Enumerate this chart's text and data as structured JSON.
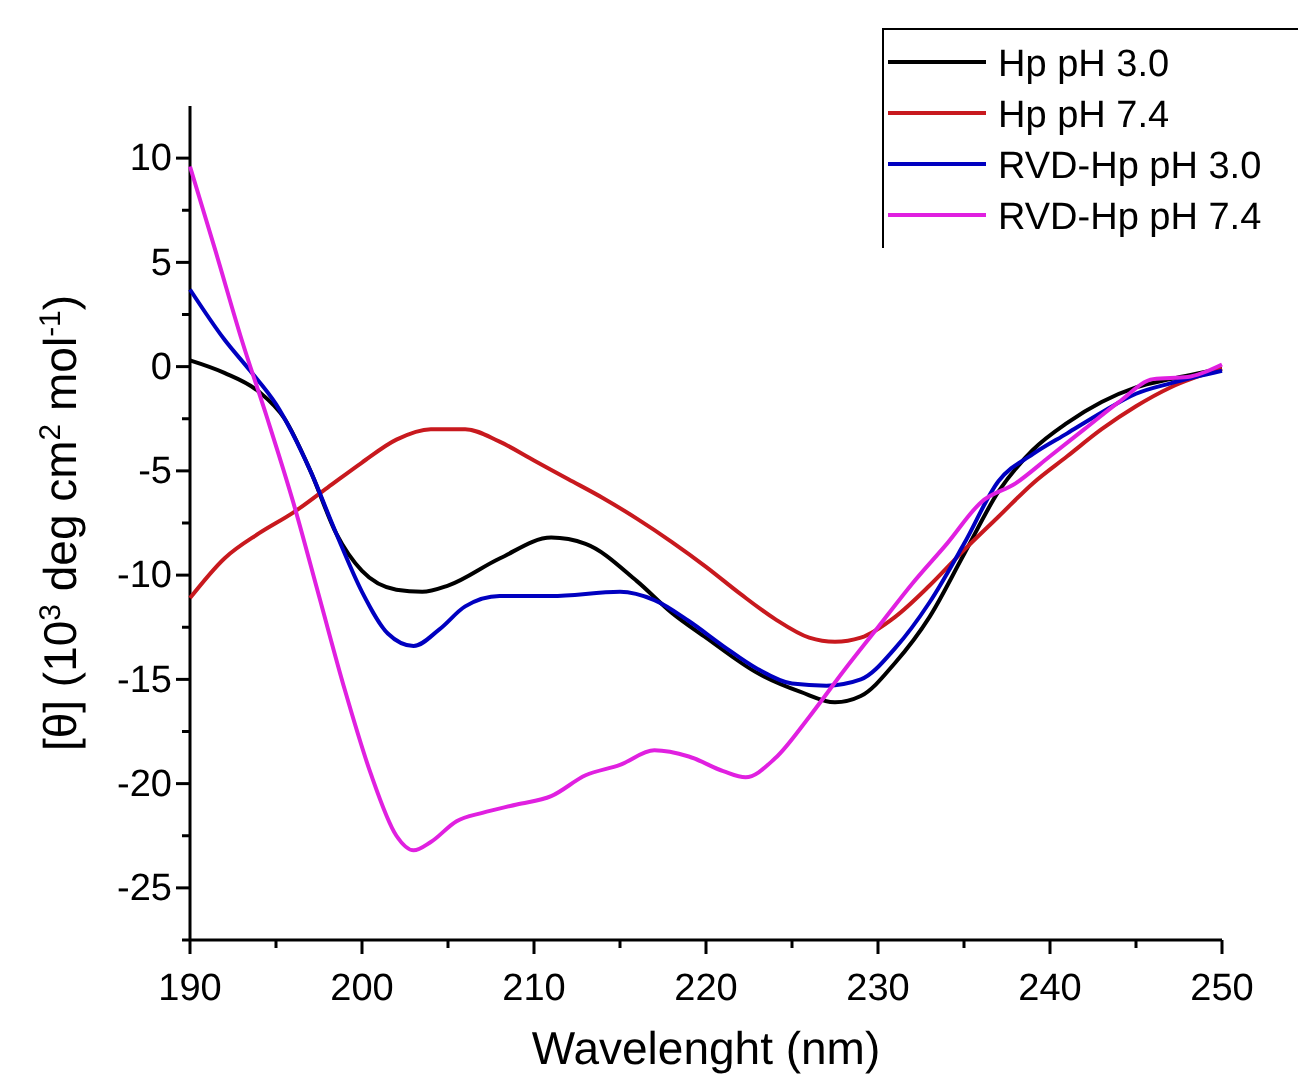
{
  "chart_data": {
    "type": "line",
    "xlabel": "Wavelenght (nm)",
    "ylabel": "[θ] (10$^{3}$ deg cm$^{2}$ mol$^{-1}$)",
    "xlim": [
      190,
      250
    ],
    "ylim": [
      -27.5,
      12.5
    ],
    "xticks": [
      190,
      {
        "value": 195,
        "label": null
      },
      200,
      {
        "value": 205,
        "label": null
      },
      210,
      {
        "value": 215,
        "label": null
      },
      220,
      {
        "value": 225,
        "label": null
      },
      230,
      {
        "value": 235,
        "label": null
      },
      240,
      {
        "value": 245,
        "label": null
      },
      250
    ],
    "yticks": [
      {
        "value": -27.5,
        "label": null
      },
      -25,
      {
        "value": -22.5,
        "label": null
      },
      -20,
      {
        "value": -17.5,
        "label": null
      },
      -15,
      {
        "value": -12.5,
        "label": null
      },
      -10,
      {
        "value": -7.5,
        "label": null
      },
      -5,
      {
        "value": -2.5,
        "label": null
      },
      0,
      {
        "value": 2.5,
        "label": null
      },
      5,
      {
        "value": 7.5,
        "label": null
      },
      10
    ],
    "grid": false,
    "legend": "top right",
    "line_style": "solid",
    "series": [
      {
        "name": "Hp pH 3.0",
        "color": "#000000",
        "x": [
          190,
          192,
          194,
          195.5,
          197,
          198.5,
          200,
          202,
          203.5,
          205,
          208,
          211,
          213,
          216,
          218,
          220,
          223,
          225.5,
          227.5,
          229,
          231,
          233,
          235,
          237,
          239,
          241,
          243,
          245,
          247,
          250
        ],
        "values": [
          0.3,
          -0.3,
          -1.2,
          -2.5,
          -5,
          -8,
          -9.8,
          -10.7,
          -10.8,
          -10.5,
          -9.2,
          -8.2,
          -8.5,
          -10.3,
          -11.8,
          -13,
          -14.7,
          -15.6,
          -16.1,
          -15.8,
          -14.2,
          -12,
          -9,
          -6,
          -4,
          -2.7,
          -1.7,
          -1,
          -0.6,
          -0.1
        ]
      },
      {
        "name": "Hp pH 7.4",
        "color": "#c8191e",
        "x": [
          190,
          192,
          194,
          196,
          198,
          200,
          202,
          204,
          206,
          208,
          210,
          212,
          214,
          216,
          218,
          220,
          222,
          224,
          226,
          227.5,
          229,
          231,
          233,
          235,
          237,
          239,
          241,
          243,
          245,
          247,
          250
        ],
        "values": [
          -11.1,
          -9.2,
          -8,
          -7,
          -5.8,
          -4.6,
          -3.5,
          -3,
          -3,
          -3.6,
          -4.5,
          -5.4,
          -6.3,
          -7.3,
          -8.4,
          -9.6,
          -10.9,
          -12.1,
          -13,
          -13.2,
          -13,
          -12,
          -10.5,
          -8.8,
          -7.2,
          -5.6,
          -4.3,
          -3,
          -1.9,
          -1,
          -0.1
        ]
      },
      {
        "name": "RVD-Hp pH 3.0",
        "color": "#0000c0",
        "x": [
          190,
          192,
          193.5,
          195,
          197,
          198.5,
          200,
          201.5,
          203,
          204.5,
          206,
          208,
          211,
          215,
          217,
          219,
          221,
          223,
          225,
          227,
          229,
          231,
          233,
          235,
          237,
          239,
          241,
          243,
          245,
          247,
          250
        ],
        "values": [
          3.7,
          1.3,
          -0.2,
          -1.8,
          -5,
          -8,
          -10.8,
          -12.8,
          -13.4,
          -12.6,
          -11.5,
          -11,
          -11,
          -10.8,
          -11.2,
          -12.2,
          -13.4,
          -14.5,
          -15.2,
          -15.3,
          -15,
          -13.5,
          -11.3,
          -8.5,
          -5.5,
          -4.2,
          -3.2,
          -2.2,
          -1.3,
          -0.8,
          -0.2
        ]
      },
      {
        "name": "RVD-Hp pH 7.4",
        "color": "#e020e0",
        "x": [
          190,
          191.5,
          193,
          194.5,
          196,
          197.5,
          199,
          200.5,
          202,
          203,
          204,
          205.5,
          207,
          209,
          211,
          213,
          215,
          217,
          219,
          221,
          222.3,
          224,
          226,
          228,
          230,
          232,
          234,
          236,
          238,
          240,
          242,
          244,
          246,
          248,
          250
        ],
        "values": [
          9.6,
          5.5,
          1.3,
          -2.5,
          -6.5,
          -11,
          -15.5,
          -19.5,
          -22.5,
          -23.2,
          -22.8,
          -21.8,
          -21.4,
          -21,
          -20.6,
          -19.6,
          -19.1,
          -18.4,
          -18.7,
          -19.4,
          -19.7,
          -18.8,
          -16.8,
          -14.6,
          -12.5,
          -10.4,
          -8.5,
          -6.5,
          -5.6,
          -4.3,
          -3,
          -1.7,
          -0.6,
          -0.5,
          0.1
        ]
      }
    ]
  }
}
